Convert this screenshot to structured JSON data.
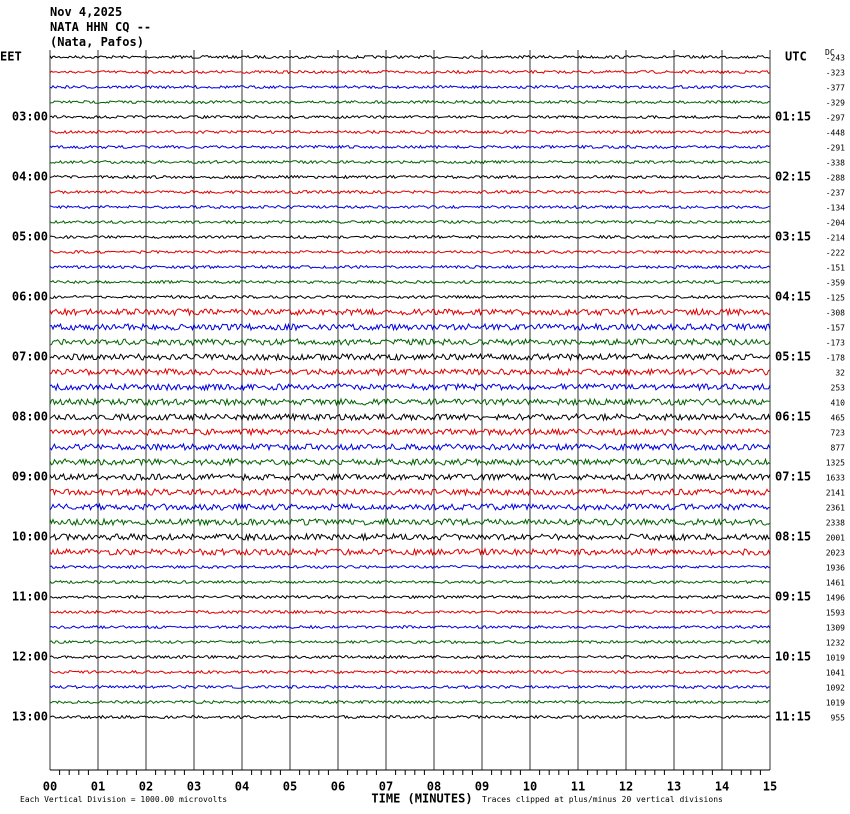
{
  "header": {
    "date": "Nov 4,2025",
    "station": "NATA HHN CQ --",
    "location": "(Nata, Pafos)"
  },
  "left_zone": "EET",
  "right_zone": "UTC",
  "dc_label": "DC",
  "local_times": [
    "03:00",
    "04:00",
    "05:00",
    "06:00",
    "07:00",
    "08:00",
    "09:00",
    "10:00",
    "11:00",
    "12:00",
    "13:00"
  ],
  "utc_times": [
    "01:15",
    "02:15",
    "03:15",
    "04:15",
    "05:15",
    "06:15",
    "07:15",
    "08:15",
    "09:15",
    "10:15",
    "11:15"
  ],
  "dc_offsets": [
    "-243",
    "-323",
    "-377",
    "-329",
    "-297",
    "-448",
    "-291",
    "-338",
    "-288",
    "-237",
    "-134",
    "-204",
    "-214",
    "-222",
    "-151",
    "-359",
    "-125",
    "-308",
    "-157",
    "-173",
    "-178",
    "32",
    "253",
    "410",
    "465",
    "723",
    "877",
    "1325",
    "1633",
    "2141",
    "2361",
    "2338",
    "2001",
    "2023",
    "1936",
    "1461",
    "1496",
    "1593",
    "1309",
    "1232",
    "1019",
    "1041",
    "1092",
    "1019",
    "955"
  ],
  "minute_labels": [
    "00",
    "01",
    "02",
    "03",
    "04",
    "05",
    "06",
    "07",
    "08",
    "09",
    "10",
    "11",
    "12",
    "13",
    "14",
    "15"
  ],
  "x_title": "TIME (MINUTES)",
  "scale_note": "Each Vertical Division = 1000.00 microvolts",
  "clip_note": "Traces clipped at plus/minus 20 vertical divisions",
  "trace_colors": [
    "#000000",
    "#e00000",
    "#0000e0",
    "#006400"
  ]
}
